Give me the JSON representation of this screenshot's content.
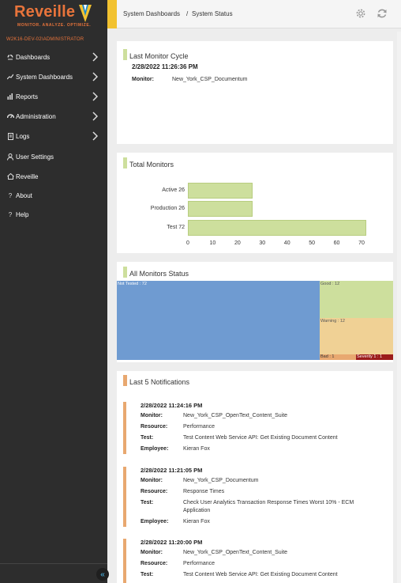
{
  "app": {
    "logo_text": "Reveille",
    "tagline": "MONITOR. ANALYZE. OPTIMIZE.",
    "user": "W2K16-DEV-02\\ADMINISTRATOR"
  },
  "sidebar": {
    "items": [
      {
        "label": "Dashboards",
        "icon": "dashboard-icon"
      },
      {
        "label": "System Dashboards",
        "icon": "system-dashboard-icon"
      },
      {
        "label": "Reports",
        "icon": "reports-icon"
      },
      {
        "label": "Administration",
        "icon": "administration-icon"
      },
      {
        "label": "Logs",
        "icon": "logs-icon"
      },
      {
        "label": "User Settings",
        "icon": "user-icon"
      },
      {
        "label": "Reveille",
        "icon": "home-icon"
      },
      {
        "label": "About",
        "icon": "question-icon"
      },
      {
        "label": "Help",
        "icon": "question-icon"
      }
    ],
    "collapse_glyph": "«"
  },
  "breadcrumb": {
    "parent": "System Dashboards",
    "separator": "/",
    "current": "System Status"
  },
  "last_monitor_cycle": {
    "title": "Last Monitor Cycle",
    "date": "2/28/2022 11:26:36 PM",
    "monitor_label": "Monitor:",
    "monitor_value": "New_York_CSP_Documentum"
  },
  "total_monitors": {
    "title": "Total Monitors"
  },
  "chart_data": {
    "type": "bar",
    "orientation": "horizontal",
    "categories": [
      "Active 26",
      "Production 26",
      "Test 72"
    ],
    "values": [
      26,
      26,
      72
    ],
    "xlim": [
      0,
      70
    ],
    "xticks": [
      0,
      10,
      20,
      30,
      40,
      50,
      60,
      70
    ],
    "bar_color": "#cddf9d"
  },
  "all_monitors_status": {
    "title": "All Monitors Status",
    "cells": [
      {
        "label": "Not Tested : 72",
        "value": 72,
        "color": "#6f9bd1"
      },
      {
        "label": "Good : 12",
        "value": 12,
        "color": "#cddf9d"
      },
      {
        "label": "Warning : 12",
        "value": 12,
        "color": "#f0d195"
      },
      {
        "label": "Bad : 1",
        "value": 1,
        "color": "#e8a870"
      },
      {
        "label": "Severity 1 : 1",
        "value": 1,
        "color": "#9b1c1c"
      }
    ]
  },
  "notifications": {
    "title": "Last 5 Notifications",
    "labels": {
      "monitor": "Monitor:",
      "resource": "Resource:",
      "test": "Test:",
      "employee": "Employee:"
    },
    "items": [
      {
        "date": "2/28/2022 11:24:16 PM",
        "monitor": "New_York_CSP_OpenText_Content_Suite",
        "resource": "Performance",
        "test": "Test Content Web Service API: Get Existing Document Content",
        "employee": "Kieran Fox"
      },
      {
        "date": "2/28/2022 11:21:05 PM",
        "monitor": "New_York_CSP_Documentum",
        "resource": "Response Times",
        "test": "Check User Analytics Transaction Response Times Worst 10% - ECM Application",
        "employee": "Kieran Fox"
      },
      {
        "date": "2/28/2022 11:20:00 PM",
        "monitor": "New_York_CSP_OpenText_Content_Suite",
        "resource": "Performance",
        "test": "Test Content Web Service API: Get Existing Document Content",
        "employee": ""
      }
    ]
  },
  "colors": {
    "brand": "#e8743b",
    "sidebar_bg": "#2d2d2d",
    "header_accent": "#f2c230",
    "card_bar_green": "#cddf9d",
    "card_bar_orange": "#e8a870"
  }
}
